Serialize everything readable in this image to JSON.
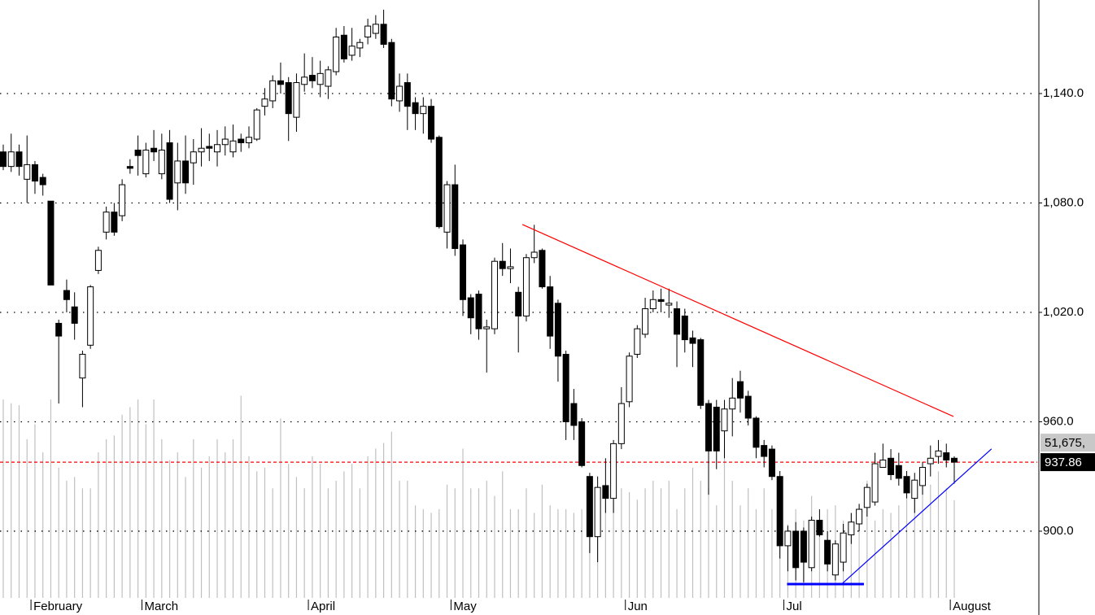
{
  "chart_data": {
    "type": "candlestick",
    "categories": [
      null,
      null,
      null,
      null,
      "February",
      null,
      null,
      null,
      null,
      null,
      null,
      null,
      null,
      null,
      null,
      null,
      null,
      null,
      "March",
      null,
      null,
      null,
      null,
      null,
      null,
      null,
      null,
      null,
      null,
      null,
      null,
      null,
      null,
      null,
      null,
      null,
      null,
      null,
      null,
      "April",
      null,
      null,
      null,
      null,
      null,
      null,
      null,
      null,
      null,
      null,
      null,
      null,
      null,
      null,
      null,
      null,
      null,
      "May",
      null,
      null,
      null,
      null,
      null,
      null,
      null,
      null,
      null,
      null,
      null,
      null,
      null,
      null,
      null,
      null,
      null,
      null,
      null,
      null,
      null,
      "Jun",
      null,
      null,
      null,
      null,
      null,
      null,
      null,
      null,
      null,
      null,
      null,
      null,
      null,
      null,
      null,
      null,
      null,
      null,
      null,
      "Jul",
      null,
      null,
      null,
      null,
      null,
      null,
      null,
      null,
      null,
      null,
      null,
      null,
      null,
      null,
      null,
      null,
      null,
      null,
      null,
      null,
      "August"
    ],
    "open": [
      1108,
      1100,
      1108,
      1093,
      1101,
      1094,
      1081,
      1014,
      1032,
      1023,
      984,
      1002,
      1043,
      1064,
      1075,
      1073,
      1100,
      1109,
      1096,
      1110,
      1096,
      1113,
      1091,
      1103,
      1102,
      1108,
      1111,
      1108,
      1112,
      1108,
      1115,
      1113,
      1115,
      1133,
      1136,
      1147,
      1146,
      1127,
      1145,
      1150,
      1145,
      1144,
      1152,
      1172,
      1161,
      1165,
      1171,
      1173,
      1178,
      1168,
      1136,
      1146,
      1135,
      1129,
      1133,
      1116,
      1064,
      1090,
      1057,
      1028,
      1030,
      1011,
      1011,
      1048,
      1044,
      1031,
      1018,
      1050,
      1054,
      1034,
      1025,
      997,
      970,
      960,
      930,
      897,
      925,
      918,
      948,
      971,
      997,
      1008,
      1022,
      1027,
      1024,
      1022,
      1018,
      1006,
      1005,
      970,
      968,
      955,
      967,
      982,
      974,
      962,
      947,
      945,
      930,
      892,
      900,
      900,
      880,
      906,
      895,
      876,
      883,
      898,
      904,
      913,
      916,
      935,
      940,
      936,
      930,
      918,
      925,
      937,
      941,
      943,
      940
    ],
    "high": [
      1112,
      1118,
      1112,
      1117,
      1103,
      1096,
      1081,
      1016,
      1038,
      1031,
      999,
      1035,
      1056,
      1078,
      1080,
      1093,
      1104,
      1117,
      1113,
      1120,
      1118,
      1120,
      1113,
      1117,
      1115,
      1121,
      1118,
      1120,
      1122,
      1123,
      1118,
      1122,
      1132,
      1143,
      1150,
      1157,
      1149,
      1151,
      1162,
      1160,
      1158,
      1155,
      1176,
      1177,
      1176,
      1170,
      1181,
      1183,
      1186,
      1170,
      1151,
      1151,
      1138,
      1138,
      1137,
      1117,
      1092,
      1101,
      1060,
      1030,
      1032,
      1016,
      1050,
      1058,
      1055,
      1034,
      1052,
      1068,
      1055,
      1040,
      1027,
      999,
      978,
      962,
      932,
      930,
      940,
      950,
      979,
      998,
      1013,
      1028,
      1032,
      1033,
      1033,
      1026,
      1022,
      1010,
      1006,
      972,
      972,
      972,
      984,
      988,
      977,
      963,
      950,
      947,
      933,
      903,
      905,
      902,
      908,
      912,
      900,
      895,
      904,
      910,
      915,
      926,
      943,
      948,
      945,
      943,
      933,
      932,
      938,
      947,
      950,
      948,
      941
    ],
    "low": [
      1098,
      1097,
      1095,
      1080,
      1085,
      1084,
      1035,
      970,
      1020,
      1005,
      968,
      1000,
      1041,
      1060,
      1062,
      1070,
      1096,
      1095,
      1094,
      1103,
      1093,
      1080,
      1076,
      1085,
      1090,
      1100,
      1103,
      1100,
      1106,
      1105,
      1108,
      1110,
      1114,
      1128,
      1132,
      1140,
      1114,
      1119,
      1141,
      1143,
      1138,
      1137,
      1150,
      1157,
      1158,
      1160,
      1167,
      1170,
      1165,
      1133,
      1130,
      1120,
      1120,
      1118,
      1113,
      1066,
      1055,
      1051,
      1018,
      1008,
      1005,
      987,
      1008,
      1040,
      1036,
      998,
      1015,
      1047,
      1033,
      1000,
      982,
      950,
      950,
      935,
      888,
      883,
      910,
      910,
      945,
      968,
      995,
      1006,
      1020,
      1020,
      1017,
      990,
      998,
      990,
      967,
      920,
      934,
      940,
      952,
      965,
      958,
      940,
      935,
      928,
      885,
      878,
      873,
      872,
      878,
      897,
      878,
      873,
      878,
      893,
      900,
      908,
      914,
      935,
      928,
      925,
      918,
      910,
      920,
      930,
      937,
      935,
      926
    ],
    "close": [
      1100,
      1108,
      1100,
      1101,
      1092,
      1090,
      1035,
      1007,
      1027,
      1014,
      997,
      1034,
      1054,
      1075,
      1064,
      1090,
      1099,
      1106,
      1109,
      1108,
      1109,
      1082,
      1103,
      1091,
      1108,
      1110,
      1110,
      1112,
      1115,
      1114,
      1113,
      1116,
      1131,
      1137,
      1147,
      1145,
      1129,
      1146,
      1149,
      1147,
      1151,
      1153,
      1171,
      1159,
      1166,
      1168,
      1177,
      1178,
      1167,
      1137,
      1144,
      1133,
      1129,
      1133,
      1115,
      1067,
      1090,
      1055,
      1027,
      1017,
      1011,
      1012,
      1048,
      1044,
      1045,
      1018,
      1050,
      1053,
      1034,
      1007,
      996,
      960,
      958,
      936,
      897,
      924,
      918,
      948,
      970,
      996,
      1011,
      1022,
      1027,
      1026,
      1025,
      1008,
      1005,
      1003,
      969,
      944,
      944,
      967,
      973,
      973,
      962,
      946,
      941,
      930,
      892,
      900,
      880,
      883,
      906,
      898,
      882,
      893,
      899,
      905,
      912,
      924,
      937,
      939,
      931,
      929,
      921,
      928,
      935,
      940,
      944,
      939,
      937.86
    ],
    "volume": [
      105000,
      103000,
      102000,
      84000,
      92000,
      77000,
      105000,
      69000,
      62000,
      64000,
      58000,
      58000,
      77000,
      84000,
      86000,
      97000,
      101000,
      105000,
      92000,
      105000,
      84000,
      73000,
      77000,
      64000,
      84000,
      69000,
      75000,
      84000,
      77000,
      84000,
      107000,
      75000,
      67000,
      69000,
      58000,
      95000,
      71000,
      64000,
      58000,
      75000,
      71000,
      58000,
      62000,
      67000,
      71000,
      58000,
      75000,
      79000,
      82000,
      88000,
      62000,
      62000,
      49000,
      47000,
      45000,
      47000,
      60000,
      58000,
      79000,
      58000,
      58000,
      62000,
      54000,
      67000,
      47000,
      47000,
      58000,
      45000,
      60000,
      49000,
      47000,
      47000,
      45000,
      47000,
      45000,
      45000,
      54000,
      64000,
      58000,
      56000,
      52000,
      58000,
      62000,
      58000,
      62000,
      47000,
      58000,
      69000,
      62000,
      58000,
      49000,
      79000,
      62000,
      49000,
      58000,
      47000,
      58000,
      47000,
      41000,
      39000,
      47000,
      41000,
      54000,
      41000,
      47000,
      49000,
      41000,
      45000,
      49000,
      62000,
      41000,
      47000,
      45000,
      49000,
      54000,
      60000,
      64000,
      60000,
      67000,
      58000,
      51675
    ],
    "last_volume_label": "51,675,",
    "ylim": [
      863.4,
      1191.3
    ],
    "yticks": [
      {
        "value": 900,
        "label": "900.0"
      },
      {
        "value": 960,
        "label": "960.0"
      },
      {
        "value": 1020,
        "label": "1,020.0"
      },
      {
        "value": 1080,
        "label": "1,080.0"
      },
      {
        "value": 1140,
        "label": "1,140.0"
      }
    ],
    "y2lim": [
      0,
      316500
    ],
    "grid": true,
    "up_color": "#ffffff",
    "down_color": "#000000",
    "volume_color": "#c0c0c0",
    "last_line_color": "#ff0000",
    "trendlines": [
      {
        "color": "#ff0000",
        "x": [
          65.5,
          119.9
        ],
        "y": [
          1068.2,
          962.9
        ]
      },
      {
        "color": "#0000ff",
        "x": [
          98.9,
          108.6
        ],
        "y": [
          871,
          871
        ]
      },
      {
        "color": "#0000ff",
        "x": [
          105.8,
          124.7
        ],
        "y": [
          871,
          945.1
        ]
      }
    ]
  }
}
